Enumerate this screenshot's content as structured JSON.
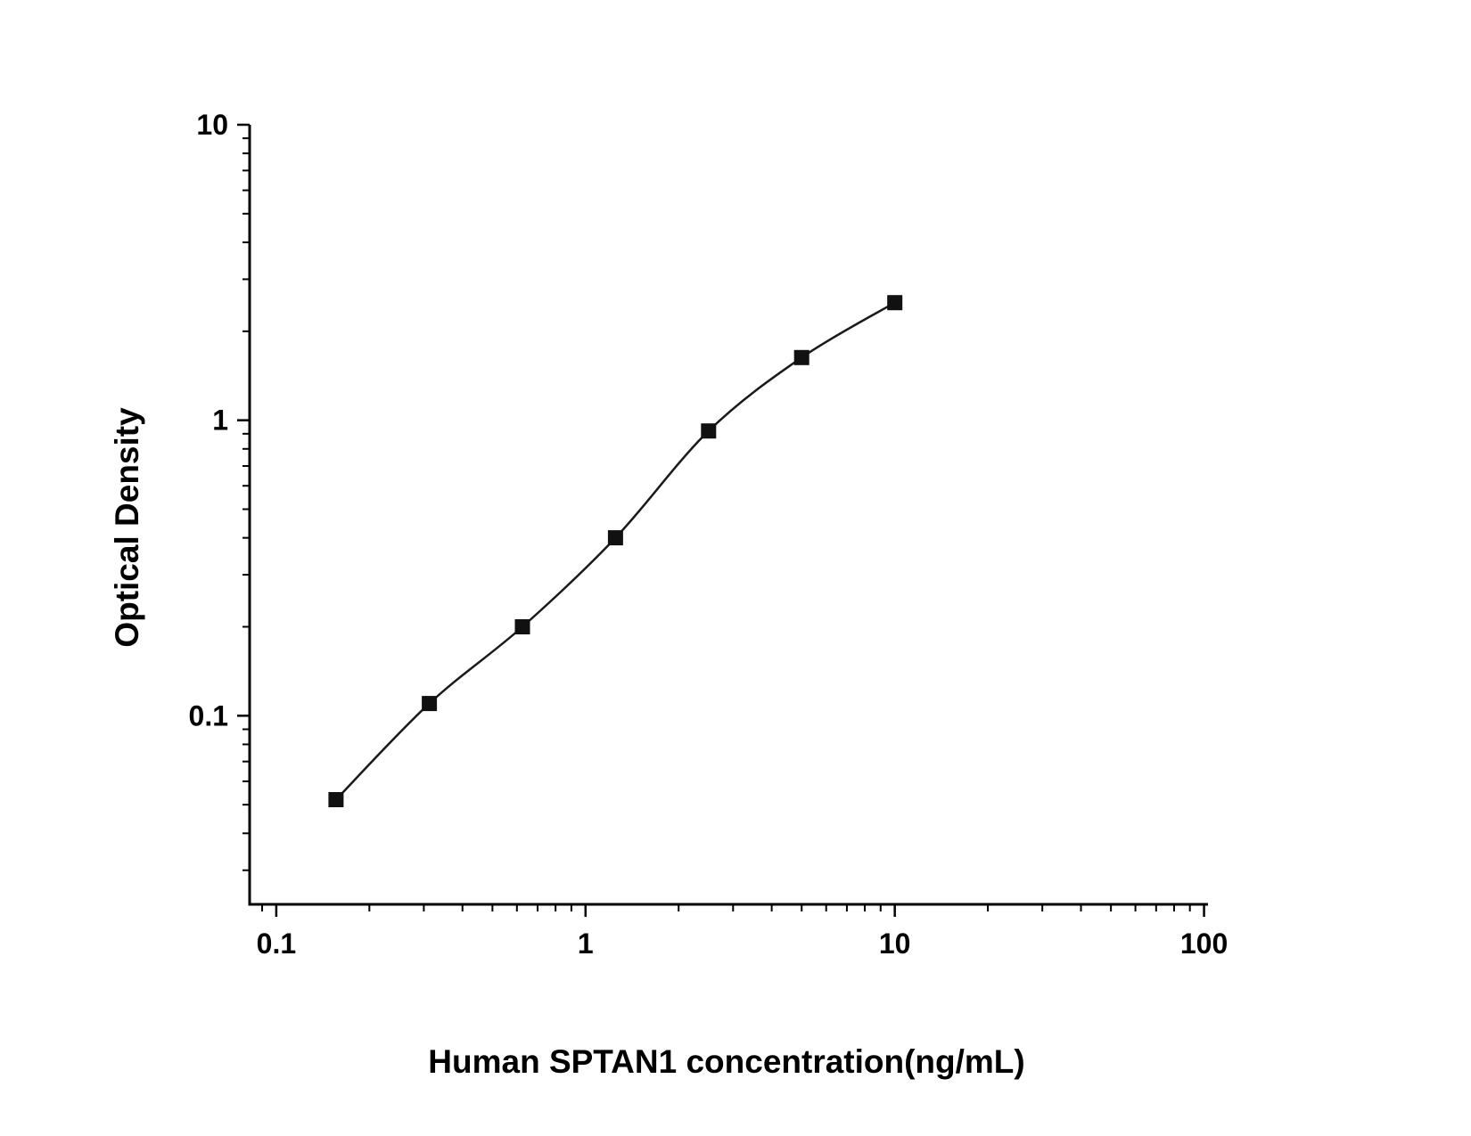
{
  "chart_data": {
    "type": "scatter",
    "title": "",
    "xlabel": "Human SPTAN1 concentration(ng/mL)",
    "ylabel": "Optical Density",
    "xscale": "log",
    "yscale": "log",
    "x": [
      0.156,
      0.3125,
      0.625,
      1.25,
      2.5,
      5,
      10
    ],
    "y": [
      0.052,
      0.11,
      0.2,
      0.4,
      0.92,
      1.63,
      2.5
    ],
    "xlim": [
      0.082,
      103
    ],
    "ylim": [
      0.023,
      10
    ],
    "x_ticks": [
      0.1,
      1,
      10,
      100
    ],
    "x_tick_labels": [
      "0.1",
      "1",
      "10",
      "100"
    ],
    "y_ticks": [
      0.1,
      1,
      10
    ],
    "y_tick_labels": [
      "0.1",
      "1",
      "10"
    ],
    "grid": "off",
    "legend": "none",
    "marker": "filled-square",
    "line_color": "#1a1a1a",
    "marker_color": "#111111",
    "axis_color": "#000000",
    "background_color": "#ffffff"
  }
}
